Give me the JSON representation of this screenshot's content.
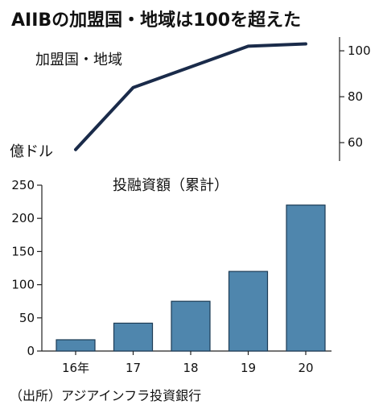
{
  "title": "AIIBの加盟国・地域は100を超えた",
  "source": "（出所）アジアインフラ投資銀行",
  "chart_data": [
    {
      "type": "line",
      "title": "加盟国・地域",
      "x": [
        "16年",
        "17",
        "18",
        "19",
        "20"
      ],
      "values": [
        57,
        84,
        93,
        102,
        103
      ],
      "ylim": [
        52,
        106
      ],
      "yticks": [
        60,
        80,
        100
      ],
      "ytick_labels": [
        "60",
        "80",
        "100"
      ],
      "axis_side": "right",
      "color": "#1a2b4a"
    },
    {
      "type": "bar",
      "title": "投融資額（累計）",
      "ylabel": "億ドル",
      "categories": [
        "16年",
        "17",
        "18",
        "19",
        "20"
      ],
      "values": [
        17,
        42,
        75,
        120,
        220
      ],
      "ylim": [
        0,
        250
      ],
      "yticks": [
        0,
        50,
        100,
        150,
        200,
        250
      ],
      "ytick_labels": [
        "0",
        "50",
        "100",
        "150",
        "200",
        "250"
      ],
      "color": "#4f86ad"
    }
  ]
}
